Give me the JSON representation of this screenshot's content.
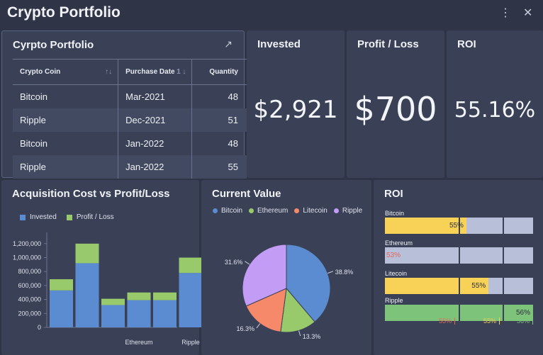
{
  "app": {
    "title": "Crypto Portfolio"
  },
  "icons": {
    "more": "vertical-dots-icon",
    "close": "close-icon",
    "expand": "arrow-up-right-icon"
  },
  "table_card": {
    "title": "Cyrpto Portfolio",
    "columns": [
      "Crypto Coin",
      "Purchase Date",
      "Quantity"
    ],
    "sort_badge": "1",
    "rows": [
      {
        "coin": "Bitcoin",
        "date": "Mar-2021",
        "qty": "48"
      },
      {
        "coin": "Ripple",
        "date": "Dec-2021",
        "qty": "51"
      },
      {
        "coin": "Bitcoin",
        "date": "Jan-2022",
        "qty": "48"
      },
      {
        "coin": "Ripple",
        "date": "Jan-2022",
        "qty": "55"
      }
    ]
  },
  "kpis": {
    "invested": {
      "title": "Invested",
      "value": "$2,921"
    },
    "profit": {
      "title": "Profit / Loss",
      "value": "$700"
    },
    "roi": {
      "title": "ROI",
      "value": "55.16%"
    }
  },
  "chart_data": [
    {
      "type": "bar",
      "title": "Acquisition Cost vs Profit/Loss",
      "stacked": true,
      "categories": [
        "",
        "",
        "",
        "Ethereum",
        "",
        "Ripple"
      ],
      "series": [
        {
          "name": "Invested",
          "color": "#5b8bd0",
          "values": [
            530000,
            920000,
            320000,
            390000,
            390000,
            780000
          ]
        },
        {
          "name": "Profit / Loss",
          "color": "#98c96a",
          "values": [
            160000,
            280000,
            90000,
            110000,
            110000,
            220000
          ]
        }
      ],
      "yticks": [
        "0",
        "200,000",
        "400,000",
        "600,000",
        "800,000",
        "1,000,000",
        "1,200,000"
      ],
      "ylim": [
        0,
        1300000
      ],
      "legend": "top-left"
    },
    {
      "type": "pie",
      "title": "Current Value",
      "slices": [
        {
          "name": "Bitcoin",
          "value": 38.8,
          "label": "38.8%",
          "color": "#5b8bd0"
        },
        {
          "name": "Ethereum",
          "value": 13.3,
          "label": "13.3%",
          "color": "#98c96a"
        },
        {
          "name": "Litecoin",
          "value": 16.3,
          "label": "16.3%",
          "color": "#f5896a"
        },
        {
          "name": "Ripple",
          "value": 31.6,
          "label": "31.6%",
          "color": "#c39df5"
        }
      ],
      "legend": "top"
    },
    {
      "type": "bar",
      "title": "ROI",
      "orientation": "horizontal",
      "bars": [
        {
          "name": "Bitcoin",
          "value": 55,
          "label": "55%",
          "color": "#f7d257",
          "label_color": "#2a2f3e"
        },
        {
          "name": "Ethereum",
          "value": 0,
          "label": "53%",
          "color": "#f7d257",
          "label_color": "#e5665a"
        },
        {
          "name": "Litecoin",
          "value": 70,
          "label": "55%",
          "color": "#f7d257",
          "label_color": "#2a2f3e"
        },
        {
          "name": "Ripple",
          "value": 100,
          "label": "56%",
          "color": "#7ec37a",
          "label_color": "#2a2f3e"
        }
      ],
      "thresholds": [
        {
          "label": "55%",
          "color": "#e5665a"
        },
        {
          "label": "55%",
          "color": "#f7d257"
        },
        {
          "label": "56%",
          "color": "#7ec37a"
        }
      ]
    }
  ]
}
